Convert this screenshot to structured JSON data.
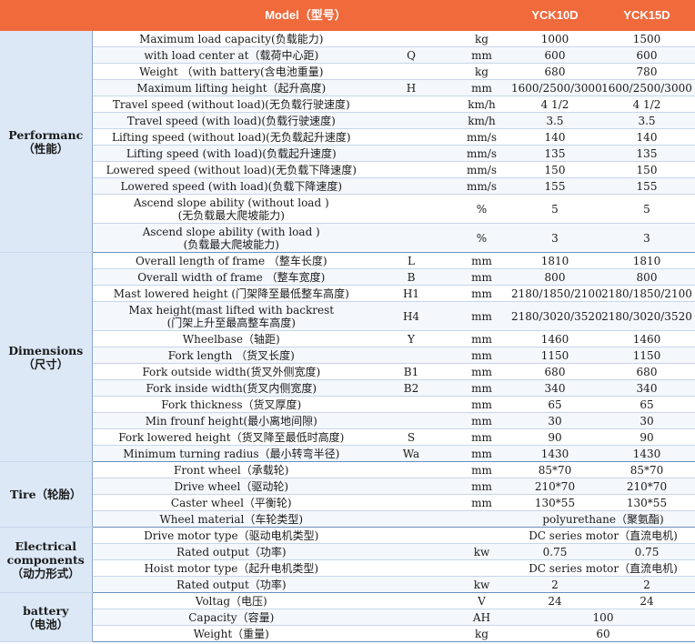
{
  "header": {
    "model": "Model（型号）",
    "col1": "YCK10D",
    "col2": "YCK15D"
  },
  "groups": [
    {
      "label": "Performanc\n（性能）",
      "rows": [
        {
          "desc": "Maximum load capacity(负载能力)",
          "code": "",
          "unit": "kg",
          "v1": "1000",
          "v2": "1500"
        },
        {
          "desc": "with load center at（载荷中心距)",
          "code": "Q",
          "unit": "mm",
          "v1": "600",
          "v2": "600"
        },
        {
          "desc": "Weight （with battery(含电池重量)",
          "code": "",
          "unit": "kg",
          "v1": "680",
          "v2": "780"
        },
        {
          "desc": "Maximum lifting height（起升高度)",
          "code": "H",
          "unit": "mm",
          "v1": "1600/2500/3000",
          "v2": "1600/2500/3000"
        },
        {
          "desc": "Travel speed (without load)(无负载行驶速度)",
          "code": "",
          "unit": "km/h",
          "v1": "4 1/2",
          "v2": "4 1/2"
        },
        {
          "desc": "Travel speed (with load)(负载行驶速度)",
          "code": "",
          "unit": "km/h",
          "v1": "3.5",
          "v2": "3.5"
        },
        {
          "desc": "Lifting speed (without load)(无负载起升速度)",
          "code": "",
          "unit": "mm/s",
          "v1": "140",
          "v2": "140"
        },
        {
          "desc": "Lifting speed (with load)(负载起升速度)",
          "code": "",
          "unit": "mm/s",
          "v1": "135",
          "v2": "135"
        },
        {
          "desc": "Lowered speed (without load)(无负载下降速度)",
          "code": "",
          "unit": "mm/s",
          "v1": "150",
          "v2": "150"
        },
        {
          "desc": "Lowered speed (with load)(负载下降速度)",
          "code": "",
          "unit": "mm/s",
          "v1": "155",
          "v2": "155"
        },
        {
          "desc": "Ascend slope ability (without load )\n(无负载最大爬坡能力)",
          "code": "",
          "unit": "%",
          "v1": "5",
          "v2": "5",
          "tall": true
        },
        {
          "desc": "Ascend slope ability (with load )\n(负载最大爬坡能力)",
          "code": "",
          "unit": "%",
          "v1": "3",
          "v2": "3",
          "tall": true
        }
      ]
    },
    {
      "label": "Dimensions\n（尺寸）",
      "rows": [
        {
          "desc": "Overall length of frame （整车长度)",
          "code": "L",
          "unit": "mm",
          "v1": "1810",
          "v2": "1810"
        },
        {
          "desc": "Overall width of frame （整车宽度)",
          "code": "B",
          "unit": "mm",
          "v1": "800",
          "v2": "800"
        },
        {
          "desc": "Mast lowered height (门架降至最低整车高度)",
          "code": "H1",
          "unit": "mm",
          "v1": "2180/1850/2100",
          "v2": "2180/1850/2100"
        },
        {
          "desc": "Max height(mast lifted with backrest\n(门架上升至最高整车高度)",
          "code": "H4",
          "unit": "mm",
          "v1": "2180/3020/3520",
          "v2": "2180/3020/3520",
          "tall": true
        },
        {
          "desc": "Wheelbase（轴距)",
          "code": "Y",
          "unit": "mm",
          "v1": "1460",
          "v2": "1460"
        },
        {
          "desc": "Fork length （货叉长度)",
          "code": "",
          "unit": "mm",
          "v1": "1150",
          "v2": "1150"
        },
        {
          "desc": "Fork outside width(货叉外侧宽度)",
          "code": "B1",
          "unit": "mm",
          "v1": "680",
          "v2": "680"
        },
        {
          "desc": "Fork inside width(货叉内侧宽度)",
          "code": "B2",
          "unit": "mm",
          "v1": "340",
          "v2": "340"
        },
        {
          "desc": "Fork thickness（货叉厚度)",
          "code": "",
          "unit": "mm",
          "v1": "65",
          "v2": "65"
        },
        {
          "desc": "Min frounf height(最小离地间隙)",
          "code": "",
          "unit": "mm",
          "v1": "30",
          "v2": "30"
        },
        {
          "desc": "Fork lowered height（货叉降至最低时高度)",
          "code": "S",
          "unit": "mm",
          "v1": "90",
          "v2": "90"
        },
        {
          "desc": "Minimum turning radius（最小转弯半径)",
          "code": "Wa",
          "unit": "mm",
          "v1": "1430",
          "v2": "1430"
        }
      ]
    },
    {
      "label": "Tire（轮胎）",
      "rows": [
        {
          "desc": "Front wheel（承载轮)",
          "code": "",
          "unit": "mm",
          "v1": "85*70",
          "v2": "85*70"
        },
        {
          "desc": "Drive wheel（驱动轮)",
          "code": "",
          "unit": "mm",
          "v1": "210*70",
          "v2": "210*70"
        },
        {
          "desc": "Caster wheel（平衡轮)",
          "code": "",
          "unit": "mm",
          "v1": "130*55",
          "v2": "130*55"
        },
        {
          "desc": "Wheel material（车轮类型)",
          "code": "",
          "unit": "",
          "span": "polyurethane（聚氨酯)"
        }
      ]
    },
    {
      "label": "Electrical\ncomponents\n（动力形式）",
      "rows": [
        {
          "desc": "Drive motor type（驱动电机类型)",
          "code": "",
          "unit": "",
          "span": "DC series motor（直流电机)"
        },
        {
          "desc": "Rated output（功率)",
          "code": "",
          "unit": "kw",
          "v1": "0.75",
          "v2": "0.75"
        },
        {
          "desc": "Hoist motor type（起升电机类型)",
          "code": "",
          "unit": "",
          "span": "DC series motor（直流电机)"
        },
        {
          "desc": "Rated output（功率)",
          "code": "",
          "unit": "kw",
          "v1": "2",
          "v2": "2"
        }
      ]
    },
    {
      "label": "battery\n（电池）",
      "rows": [
        {
          "desc": "Voltag（电压)",
          "code": "",
          "unit": "V",
          "v1": "24",
          "v2": "24"
        },
        {
          "desc": "Capacity（容量)",
          "code": "",
          "unit": "AH",
          "span": "100"
        },
        {
          "desc": "Weight（重量)",
          "code": "",
          "unit": "kg",
          "span": "60"
        }
      ]
    }
  ]
}
